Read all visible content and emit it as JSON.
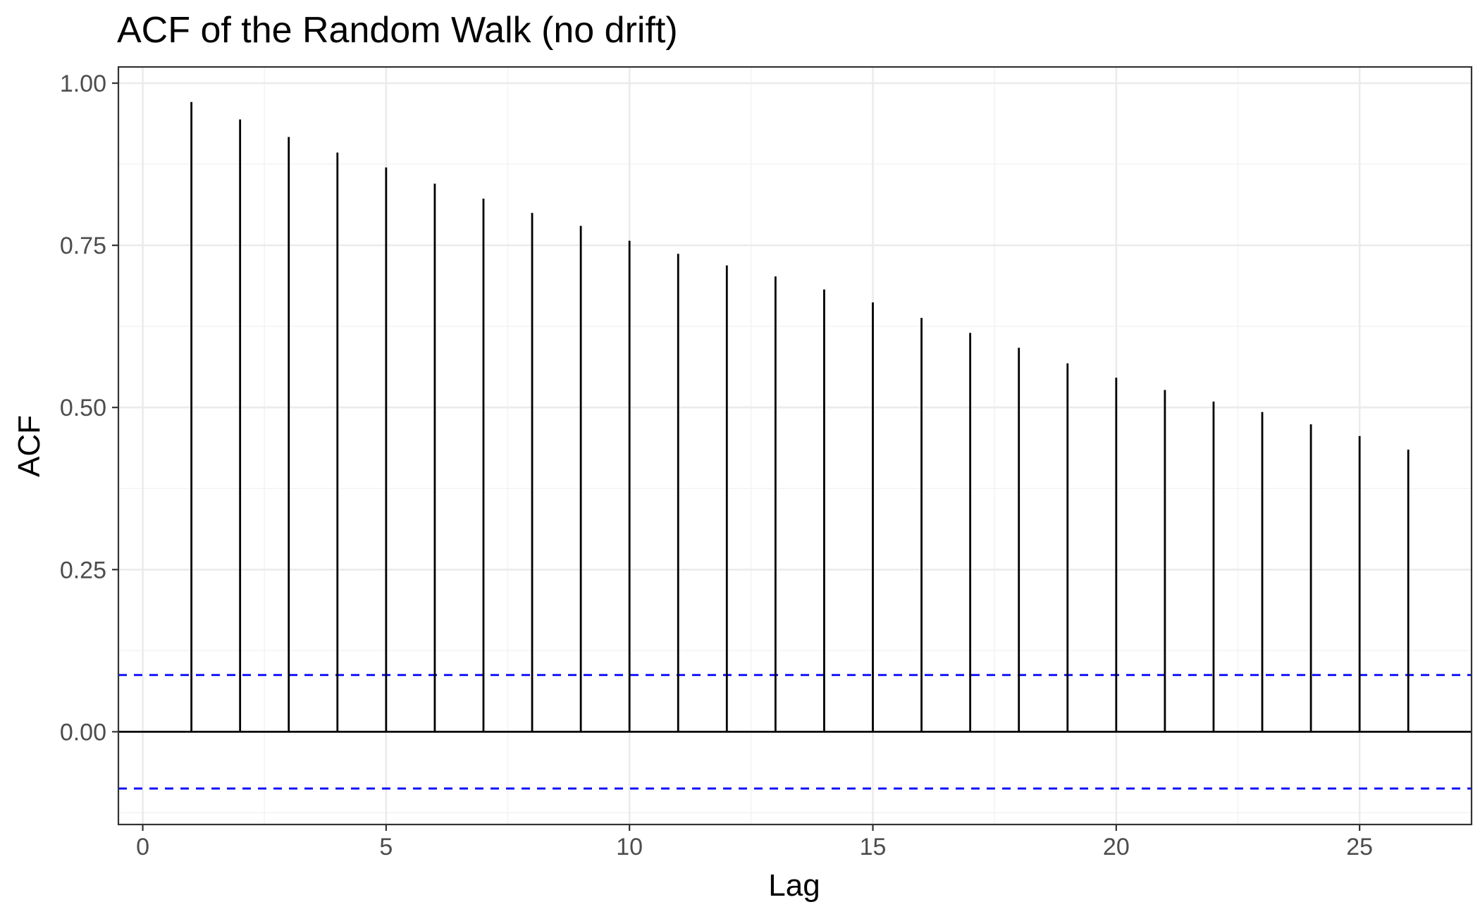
{
  "chart_data": {
    "type": "bar",
    "title": "ACF of the Random Walk (no drift)",
    "xlabel": "Lag",
    "ylabel": "ACF",
    "x": [
      1,
      2,
      3,
      4,
      5,
      6,
      7,
      8,
      9,
      10,
      11,
      12,
      13,
      14,
      15,
      16,
      17,
      18,
      19,
      20,
      21,
      22,
      23,
      24,
      25,
      26
    ],
    "values": [
      0.971,
      0.944,
      0.917,
      0.893,
      0.87,
      0.845,
      0.822,
      0.8,
      0.78,
      0.757,
      0.737,
      0.719,
      0.702,
      0.682,
      0.662,
      0.638,
      0.615,
      0.592,
      0.568,
      0.546,
      0.527,
      0.509,
      0.493,
      0.474,
      0.456,
      0.435
    ],
    "xlim": [
      -0.5,
      27.3
    ],
    "ylim": [
      -0.143,
      1.025
    ],
    "x_ticks": [
      0,
      5,
      10,
      15,
      20,
      25
    ],
    "x_tick_labels": [
      "0",
      "5",
      "10",
      "15",
      "20",
      "25"
    ],
    "y_ticks": [
      0,
      0.25,
      0.5,
      0.75,
      1
    ],
    "y_tick_labels": [
      "0.00",
      "0.25",
      "0.50",
      "0.75",
      "1.00"
    ],
    "confidence_bound": 0.0875,
    "grid": true,
    "legend": "none",
    "colors": {
      "bars": "#000000",
      "confidence": "#0000ff",
      "grid_major": "#ebebeb",
      "grid_minor": "#f3f3f3",
      "panel_border": "#333333"
    }
  }
}
